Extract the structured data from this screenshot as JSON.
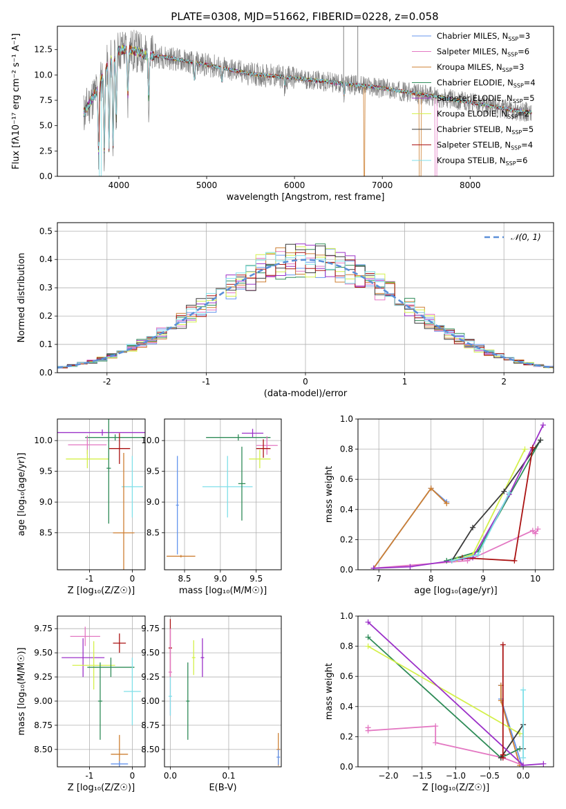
{
  "figure_title": "PLATE=0308, MJD=51662, FIBERID=0228, z=0.058",
  "colors": {
    "chabrier_miles": "#6495ed",
    "salpeter_miles": "#e377c2",
    "kroupa_miles": "#cd7f32",
    "chabrier_elodie": "#2e8b57",
    "salpeter_elodie": "#9b30c8",
    "kroupa_elodie": "#d4f04a",
    "chabrier_stelib": "#3a3a3a",
    "salpeter_stelib": "#aa1111",
    "kroupa_stelib": "#7fdfe8",
    "data_gray": "#808080",
    "normal_dashed": "#5b8fd8"
  },
  "chart_data": [
    {
      "id": "spectrum",
      "type": "line",
      "title": "PLATE=0308, MJD=51662, FIBERID=0228, z=0.058",
      "xlabel": "wavelength [Angstrom, rest frame]",
      "ylabel": "Flux [fλ10⁻¹⁷ erg cm⁻² s⁻¹ A⁻¹]",
      "xlim": [
        3300,
        8950
      ],
      "ylim": [
        0,
        14.8
      ],
      "xticks": [
        4000,
        5000,
        6000,
        7000,
        8000
      ],
      "yticks": [
        "0.0",
        "2.5",
        "5.0",
        "7.5",
        "10.0",
        "12.5"
      ],
      "grid": false,
      "legend_position": "top-right",
      "legend": [
        {
          "label": "Chabrier MILES, N",
          "sub": "SSP",
          "suffix": "=3",
          "color": "#6495ed"
        },
        {
          "label": "Salpeter MILES, N",
          "sub": "SSP",
          "suffix": "=6",
          "color": "#e377c2"
        },
        {
          "label": "Kroupa MILES, N",
          "sub": "SSP",
          "suffix": "=3",
          "color": "#cd7f32"
        },
        {
          "label": "Chabrier ELODIE, N",
          "sub": "SSP",
          "suffix": "=4",
          "color": "#2e8b57"
        },
        {
          "label": "Salpeter ELODIE, N",
          "sub": "SSP",
          "suffix": "=5",
          "color": "#9b30c8"
        },
        {
          "label": "Kroupa ELODIE, N",
          "sub": "SSP",
          "suffix": "=2",
          "color": "#d4f04a"
        },
        {
          "label": "Chabrier STELIB, N",
          "sub": "SSP",
          "suffix": "=5",
          "color": "#3a3a3a"
        },
        {
          "label": "Salpeter STELIB, N",
          "sub": "SSP",
          "suffix": "=4",
          "color": "#aa1111"
        },
        {
          "label": "Kroupa STELIB, N",
          "sub": "SSP",
          "suffix": "=6",
          "color": "#7fdfe8"
        }
      ],
      "continuum_x": [
        3600,
        3750,
        3900,
        4000,
        4100,
        4300,
        4500,
        5000,
        5500,
        6000,
        6500,
        7000,
        7500,
        8000,
        8500,
        8700
      ],
      "continuum_y": [
        6.2,
        8.5,
        11.5,
        12.4,
        12.6,
        12.0,
        11.8,
        11.0,
        10.1,
        9.7,
        9.2,
        8.7,
        8.0,
        7.3,
        6.5,
        6.3
      ],
      "absorption_features": [
        {
          "x": 3770,
          "depth": 7.0
        },
        {
          "x": 3835,
          "depth": 8.0
        },
        {
          "x": 3889,
          "depth": 9.0
        },
        {
          "x": 3934,
          "depth": 9.5
        },
        {
          "x": 3970,
          "depth": 7.0
        },
        {
          "x": 4102,
          "depth": 5.0
        },
        {
          "x": 4340,
          "depth": 4.5
        },
        {
          "x": 4861,
          "depth": 2.0
        },
        {
          "x": 5175,
          "depth": 1.5
        },
        {
          "x": 5890,
          "depth": 1.0
        },
        {
          "x": 6563,
          "depth": 1.2
        }
      ],
      "model_dropouts": [
        {
          "x_start": 3780,
          "x_end": 3800,
          "color": "#7fdfe8"
        },
        {
          "x_start": 6790,
          "x_end": 6800,
          "color": "#cd7f32"
        },
        {
          "x_start": 7420,
          "x_end": 7440,
          "color": "#cd7f32"
        },
        {
          "x_start": 7600,
          "x_end": 7620,
          "color": "#e377c2"
        }
      ],
      "data_spikes": [
        {
          "x": 6560,
          "y": 14.8
        },
        {
          "x": 6720,
          "y": 14.8
        }
      ]
    },
    {
      "id": "residuals",
      "type": "histogram",
      "xlabel": "(data-model)/error",
      "ylabel": "Normed distribution",
      "xlim": [
        -2.5,
        2.5
      ],
      "ylim": [
        0,
        0.53
      ],
      "xticks": [
        -2,
        -1,
        0,
        1,
        2
      ],
      "yticks": [
        "0.0",
        "0.1",
        "0.2",
        "0.3",
        "0.4",
        "0.5"
      ],
      "grid": true,
      "legend_position": "top-right",
      "legend": [
        {
          "label": "𝒩(0, 1)",
          "color": "#5b8fd8",
          "style": "dashed"
        }
      ],
      "bins": {
        "start": -2.5,
        "width": 0.1,
        "count": 50
      },
      "series_seeds": [
        1,
        2,
        3,
        4,
        5,
        6,
        7,
        8,
        9
      ],
      "series_colors": [
        "#6495ed",
        "#e377c2",
        "#cd7f32",
        "#2e8b57",
        "#9b30c8",
        "#d4f04a",
        "#3a3a3a",
        "#aa1111",
        "#7fdfe8"
      ]
    },
    {
      "id": "age_vs_Z",
      "type": "scatter",
      "xlabel": "Z [log₁₀(Z/Z☉)]",
      "ylabel": "age  [log₁₀(age/yr)]",
      "xlim": [
        -1.75,
        0.3
      ],
      "ylim": [
        7.9,
        10.35
      ],
      "xticks": [
        -1,
        0
      ],
      "yticks": [
        "8.5",
        "9.0",
        "9.5",
        "10.0"
      ],
      "grid": true,
      "points": [
        {
          "x": -0.7,
          "y": 10.13,
          "xerr": 1.1,
          "yerr": 0.05,
          "color": "#9b30c8"
        },
        {
          "x": -0.4,
          "y": 10.05,
          "xerr": 0.7,
          "yerr": 0.05,
          "color": "#2e8b57"
        },
        {
          "x": -1.05,
          "y": 9.93,
          "xerr": 0.45,
          "yerr": 0.15,
          "color": "#e377c2"
        },
        {
          "x": -1.05,
          "y": 9.7,
          "xerr": 0.5,
          "yerr": 0.15,
          "color": "#d4f04a"
        },
        {
          "x": -0.3,
          "y": 9.87,
          "xerr": 0.25,
          "yerr": 0.25,
          "color": "#aa1111"
        },
        {
          "x": -0.55,
          "y": 9.55,
          "xerr": 0.05,
          "yerr": 0.9,
          "color": "#2e8b57"
        },
        {
          "x": 0.0,
          "y": 9.25,
          "xerr": 0.25,
          "yerr": 0.5,
          "color": "#7fdfe8"
        },
        {
          "x": -0.2,
          "y": 8.5,
          "xerr": 0.25,
          "yerr": 1.3,
          "color": "#cd7f32"
        }
      ]
    },
    {
      "id": "age_vs_mass",
      "type": "scatter",
      "xlabel": "mass [log₁₀(M/M☉)]",
      "ylabel": "",
      "xlim": [
        8.22,
        9.85
      ],
      "ylim": [
        7.9,
        10.35
      ],
      "xticks": [
        "8.5",
        "9.0",
        "9.5"
      ],
      "yticks": [
        "8.5",
        "9.0",
        "9.5",
        "10.0"
      ],
      "grid": true,
      "points": [
        {
          "x": 9.45,
          "y": 10.12,
          "xerr": 0.15,
          "yerr": 0.07,
          "color": "#9b30c8"
        },
        {
          "x": 9.25,
          "y": 10.05,
          "xerr": 0.45,
          "yerr": 0.05,
          "color": "#2e8b57"
        },
        {
          "x": 9.65,
          "y": 9.92,
          "xerr": 0.15,
          "yerr": 0.15,
          "color": "#e377c2"
        },
        {
          "x": 9.6,
          "y": 9.87,
          "xerr": 0.1,
          "yerr": 0.15,
          "color": "#aa1111"
        },
        {
          "x": 9.55,
          "y": 9.7,
          "xerr": 0.15,
          "yerr": 0.15,
          "color": "#d4f04a"
        },
        {
          "x": 9.1,
          "y": 9.25,
          "xerr": 0.35,
          "yerr": 0.5,
          "color": "#7fdfe8"
        },
        {
          "x": 9.3,
          "y": 9.3,
          "xerr": 0.05,
          "yerr": 0.6,
          "color": "#2e8b57"
        },
        {
          "x": 8.4,
          "y": 8.95,
          "xerr": 0.02,
          "yerr": 0.8,
          "color": "#6495ed"
        },
        {
          "x": 8.45,
          "y": 8.12,
          "xerr": 0.2,
          "yerr": 0.02,
          "color": "#cd7f32"
        }
      ]
    },
    {
      "id": "massweight_vs_age",
      "type": "line",
      "xlabel": "age  [log₁₀(age/yr)]",
      "ylabel": "mass weight",
      "xlim": [
        6.6,
        10.35
      ],
      "ylim": [
        0,
        1.0
      ],
      "xticks": [
        7,
        8,
        9,
        10
      ],
      "yticks": [
        "0.0",
        "0.2",
        "0.4",
        "0.6",
        "0.8",
        "1.0"
      ],
      "grid": true,
      "series": [
        {
          "color": "#6495ed",
          "x": [
            6.9,
            8.0,
            8.3
          ],
          "y": [
            0.01,
            0.54,
            0.45
          ]
        },
        {
          "color": "#cd7f32",
          "x": [
            6.9,
            8.0,
            8.3
          ],
          "y": [
            0.01,
            0.54,
            0.44
          ]
        },
        {
          "color": "#e377c2",
          "x": [
            6.9,
            8.7,
            9.95,
            10.0,
            10.05
          ],
          "y": [
            0.01,
            0.06,
            0.26,
            0.24,
            0.27
          ]
        },
        {
          "color": "#2e8b57",
          "x": [
            8.3,
            8.9,
            10.1
          ],
          "y": [
            0.06,
            0.12,
            0.86
          ]
        },
        {
          "color": "#d4f04a",
          "x": [
            8.5,
            8.8,
            9.8
          ],
          "y": [
            0.07,
            0.1,
            0.8
          ]
        },
        {
          "color": "#3a3a3a",
          "x": [
            8.4,
            8.8,
            9.4,
            10.1
          ],
          "y": [
            0.06,
            0.28,
            0.52,
            0.86
          ]
        },
        {
          "color": "#9b30c8",
          "x": [
            6.9,
            7.6,
            8.8,
            9.5,
            10.15
          ],
          "y": [
            0.01,
            0.02,
            0.08,
            0.5,
            0.96
          ]
        },
        {
          "color": "#aa1111",
          "x": [
            8.6,
            9.6,
            9.95
          ],
          "y": [
            0.08,
            0.06,
            0.81
          ]
        },
        {
          "color": "#7fdfe8",
          "x": [
            8.4,
            8.9,
            9.5
          ],
          "y": [
            0.06,
            0.1,
            0.51
          ]
        }
      ]
    },
    {
      "id": "mass_vs_Z",
      "type": "scatter",
      "xlabel": "Z [log₁₀(Z/Z☉)]",
      "ylabel": "mass [log₁₀(M/M☉)]",
      "xlim": [
        -1.75,
        0.3
      ],
      "ylim": [
        8.32,
        9.88
      ],
      "xticks": [
        -1,
        0
      ],
      "yticks": [
        "8.50",
        "8.75",
        "9.00",
        "9.25",
        "9.50",
        "9.75"
      ],
      "grid": true,
      "points": [
        {
          "x": -1.1,
          "y": 9.67,
          "xerr": 0.35,
          "yerr": 0.1,
          "color": "#e377c2"
        },
        {
          "x": -0.3,
          "y": 9.6,
          "xerr": 0.15,
          "yerr": 0.1,
          "color": "#aa1111"
        },
        {
          "x": -1.15,
          "y": 9.45,
          "xerr": 0.5,
          "yerr": 0.2,
          "color": "#9b30c8"
        },
        {
          "x": -0.9,
          "y": 9.37,
          "xerr": 0.5,
          "yerr": 0.25,
          "color": "#d4f04a"
        },
        {
          "x": -0.5,
          "y": 9.35,
          "xerr": 0.55,
          "yerr": 0.1,
          "color": "#2e8b57"
        },
        {
          "x": -0.75,
          "y": 9.0,
          "xerr": 0.05,
          "yerr": 0.4,
          "color": "#2e8b57"
        },
        {
          "x": 0.0,
          "y": 9.1,
          "xerr": 0.2,
          "yerr": 0.35,
          "color": "#7fdfe8"
        },
        {
          "x": -0.3,
          "y": 8.45,
          "xerr": 0.2,
          "yerr": 0.2,
          "color": "#cd7f32"
        },
        {
          "x": -0.3,
          "y": 8.35,
          "xerr": 0.2,
          "yerr": 0.03,
          "color": "#6495ed"
        }
      ]
    },
    {
      "id": "mass_vs_EBV",
      "type": "scatter",
      "xlabel": "E(B-V)",
      "ylabel": "",
      "xlim": [
        -0.01,
        0.19
      ],
      "ylim": [
        8.32,
        9.88
      ],
      "xticks": [
        "0.0",
        "0.1"
      ],
      "yticks": [
        "8.50",
        "8.75",
        "9.00",
        "9.25",
        "9.50",
        "9.75"
      ],
      "grid": true,
      "points": [
        {
          "x": 0.0,
          "y": 9.55,
          "xerr": 0.003,
          "yerr": 0.3,
          "color": "#aa1111"
        },
        {
          "x": 0.0,
          "y": 9.3,
          "xerr": 0.003,
          "yerr": 0.45,
          "color": "#e377c2"
        },
        {
          "x": 0.0,
          "y": 9.05,
          "xerr": 0.003,
          "yerr": 0.2,
          "color": "#7fdfe8"
        },
        {
          "x": 0.03,
          "y": 9.0,
          "xerr": 0.003,
          "yerr": 0.4,
          "color": "#2e8b57"
        },
        {
          "x": 0.04,
          "y": 9.45,
          "xerr": 0.003,
          "yerr": 0.18,
          "color": "#d4f04a"
        },
        {
          "x": 0.055,
          "y": 9.45,
          "xerr": 0.003,
          "yerr": 0.2,
          "color": "#9b30c8"
        },
        {
          "x": 0.185,
          "y": 8.5,
          "xerr": 0.003,
          "yerr": 0.17,
          "color": "#cd7f32"
        },
        {
          "x": 0.185,
          "y": 8.42,
          "xerr": 0.003,
          "yerr": 0.08,
          "color": "#6495ed"
        }
      ]
    },
    {
      "id": "massweight_vs_Z",
      "type": "line",
      "xlabel": "Z [log₁₀(Z/Z☉)]",
      "ylabel": "mass weight",
      "xlim": [
        -2.45,
        0.45
      ],
      "ylim": [
        0,
        1.0
      ],
      "xticks": [
        "−2.0",
        "−1.5",
        "−1.0",
        "−0.5",
        "0.0"
      ],
      "xtick_values": [
        -2.0,
        -1.5,
        -1.0,
        -0.5,
        0.0
      ],
      "yticks": [
        "0.0",
        "0.2",
        "0.4",
        "0.6",
        "0.8",
        "1.0"
      ],
      "grid": true,
      "series": [
        {
          "color": "#6495ed",
          "x": [
            -0.33,
            -0.33,
            -0.02
          ],
          "y": [
            0.54,
            0.45,
            0.01
          ]
        },
        {
          "color": "#cd7f32",
          "x": [
            -0.33,
            -0.33,
            -0.05
          ],
          "y": [
            0.54,
            0.44,
            0.01
          ]
        },
        {
          "color": "#e377c2",
          "x": [
            -2.3,
            -2.3,
            -1.3,
            -1.3,
            -0.3,
            0.0
          ],
          "y": [
            0.26,
            0.24,
            0.27,
            0.16,
            0.06,
            0.01
          ]
        },
        {
          "color": "#2e8b57",
          "x": [
            -2.3,
            -0.33,
            -0.05
          ],
          "y": [
            0.86,
            0.06,
            0.12
          ]
        },
        {
          "color": "#d4f04a",
          "x": [
            -2.3,
            -0.05
          ],
          "y": [
            0.8,
            0.22
          ]
        },
        {
          "color": "#3a3a3a",
          "x": [
            -0.33,
            0.0,
            0.0
          ],
          "y": [
            0.06,
            0.28,
            0.12
          ]
        },
        {
          "color": "#9b30c8",
          "x": [
            -2.3,
            0.0,
            0.3
          ],
          "y": [
            0.96,
            0.01,
            0.02
          ]
        },
        {
          "color": "#aa1111",
          "x": [
            -0.3,
            -0.3,
            -0.3
          ],
          "y": [
            0.81,
            0.08,
            0.06
          ]
        },
        {
          "color": "#7fdfe8",
          "x": [
            0.0,
            0.0
          ],
          "y": [
            0.51,
            0.06
          ]
        }
      ]
    }
  ]
}
